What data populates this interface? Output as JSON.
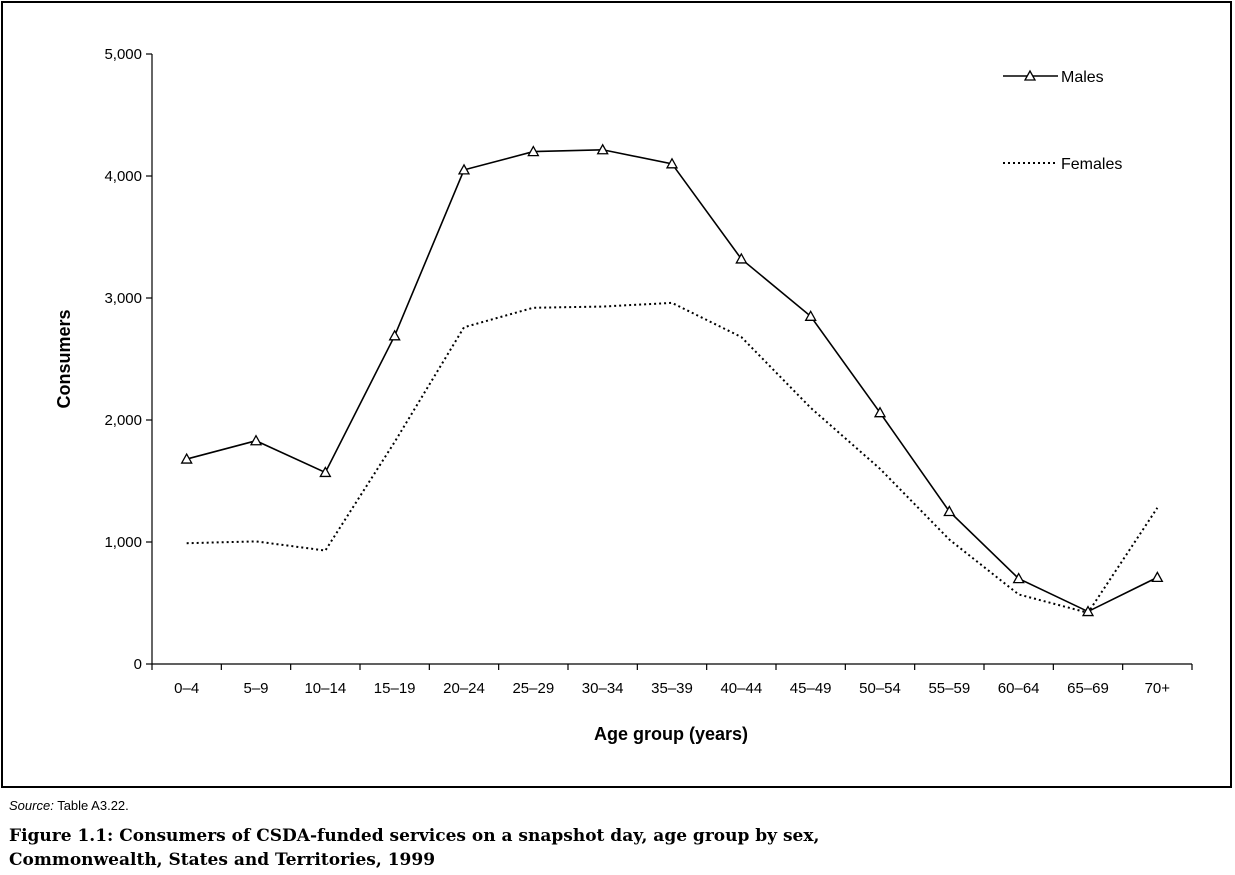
{
  "chart_data": {
    "type": "line",
    "categories": [
      "0–4",
      "5–9",
      "10–14",
      "15–19",
      "20–24",
      "25–29",
      "30–34",
      "35–39",
      "40–44",
      "45–49",
      "50–54",
      "55–59",
      "60–64",
      "65–69",
      "70+"
    ],
    "series": [
      {
        "name": "Males",
        "style": "solid-triangle-markers",
        "values": [
          1680,
          1830,
          1570,
          2690,
          4050,
          4200,
          4215,
          4100,
          3320,
          2850,
          2060,
          1250,
          700,
          430,
          710
        ]
      },
      {
        "name": "Females",
        "style": "dotted",
        "values": [
          990,
          1005,
          930,
          1820,
          2760,
          2920,
          2930,
          2960,
          2680,
          2100,
          1600,
          1020,
          570,
          420,
          1280
        ]
      }
    ],
    "ylabel": "Consumers",
    "xlabel": "Age group (years)",
    "ylim": [
      0,
      5000
    ],
    "yticks": [
      0,
      1000,
      2000,
      3000,
      4000,
      5000
    ],
    "ytick_labels": [
      "0",
      "1,000",
      "2,000",
      "3,000",
      "4,000",
      "5,000"
    ],
    "grid": false,
    "legend_position": "top-right"
  },
  "source": {
    "label": "Source:",
    "text": "Table A3.22."
  },
  "caption": {
    "line1": "Figure 1.1: Consumers of CSDA-funded services on a snapshot day, age group by sex,",
    "line2": "Commonwealth, States and Territories, 1999"
  }
}
